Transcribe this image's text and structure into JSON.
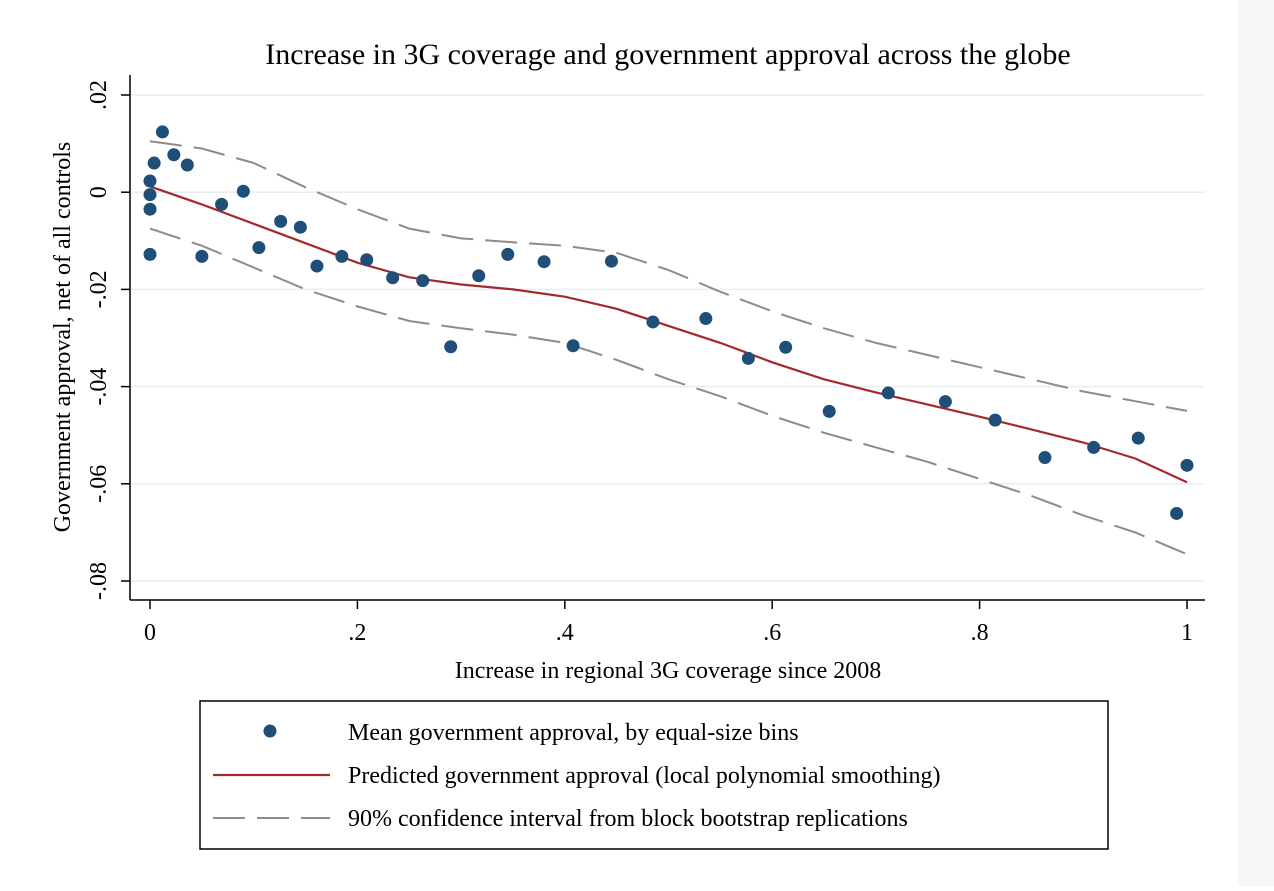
{
  "chart_data": {
    "type": "scatter",
    "title": "Increase in 3G coverage and government approval across the globe",
    "xlabel": "Increase in regional 3G coverage since 2008",
    "ylabel": "Government approval, net of all controls",
    "xlim": [
      0,
      1
    ],
    "ylim": [
      -0.08,
      0.02
    ],
    "x_ticks": [
      0,
      0.2,
      0.4,
      0.6,
      0.8,
      1
    ],
    "x_tick_labels": [
      "0",
      ".2",
      ".4",
      ".6",
      ".8",
      "1"
    ],
    "y_ticks": [
      -0.08,
      -0.06,
      -0.04,
      -0.02,
      0,
      0.02
    ],
    "y_tick_labels": [
      "-.08",
      "-.06",
      "-.04",
      "-.02",
      "0",
      ".02"
    ],
    "grid": true,
    "legend_placement": "bottom",
    "colors": {
      "points": "#1f4e79",
      "fit": "#a32a2a",
      "ci": "#8c8c8c",
      "grid": "#e6eef2"
    },
    "series": [
      {
        "name": "Mean government approval, by equal-size bins",
        "kind": "scatter",
        "x": [
          0.0,
          0.0,
          0.0,
          0.0,
          0.004,
          0.012,
          0.023,
          0.036,
          0.05,
          0.069,
          0.09,
          0.105,
          0.126,
          0.145,
          0.161,
          0.185,
          0.209,
          0.234,
          0.263,
          0.29,
          0.317,
          0.345,
          0.38,
          0.408,
          0.445,
          0.485,
          0.536,
          0.577,
          0.613,
          0.655,
          0.712,
          0.767,
          0.815,
          0.863,
          0.91,
          0.953,
          0.99,
          1.0
        ],
        "y": [
          0.0023,
          -0.0005,
          -0.0035,
          -0.0128,
          0.006,
          0.0124,
          0.0077,
          0.0056,
          -0.0132,
          -0.0025,
          0.0002,
          -0.0114,
          -0.006,
          -0.0072,
          -0.0152,
          -0.0132,
          -0.0139,
          -0.0176,
          -0.0182,
          -0.0318,
          -0.0172,
          -0.0128,
          -0.0143,
          -0.0316,
          -0.0142,
          -0.0267,
          -0.026,
          -0.0342,
          -0.0319,
          -0.0451,
          -0.0413,
          -0.0431,
          -0.0469,
          -0.0546,
          -0.0525,
          -0.0506,
          -0.0661,
          -0.0562
        ]
      },
      {
        "name": "Predicted government approval (local polynomial smoothing)",
        "kind": "line",
        "x": [
          0.0,
          0.05,
          0.1,
          0.15,
          0.2,
          0.25,
          0.3,
          0.35,
          0.4,
          0.45,
          0.5,
          0.55,
          0.6,
          0.65,
          0.7,
          0.75,
          0.8,
          0.85,
          0.9,
          0.95,
          1.0
        ],
        "y": [
          0.0012,
          -0.0025,
          -0.0065,
          -0.0105,
          -0.0145,
          -0.0175,
          -0.019,
          -0.02,
          -0.0215,
          -0.024,
          -0.0275,
          -0.031,
          -0.035,
          -0.0385,
          -0.0412,
          -0.0437,
          -0.0462,
          -0.0488,
          -0.0515,
          -0.0548,
          -0.0597
        ]
      },
      {
        "name": "90% confidence interval from block bootstrap replications",
        "kind": "band",
        "x": [
          0.0,
          0.05,
          0.1,
          0.15,
          0.2,
          0.25,
          0.3,
          0.35,
          0.4,
          0.45,
          0.5,
          0.55,
          0.6,
          0.65,
          0.7,
          0.75,
          0.8,
          0.85,
          0.9,
          0.95,
          1.0
        ],
        "upper": [
          0.0105,
          0.009,
          0.006,
          0.001,
          -0.0035,
          -0.0075,
          -0.0095,
          -0.0103,
          -0.011,
          -0.0125,
          -0.016,
          -0.0205,
          -0.0245,
          -0.028,
          -0.031,
          -0.0335,
          -0.036,
          -0.0385,
          -0.041,
          -0.043,
          -0.045
        ],
        "lower": [
          -0.0075,
          -0.011,
          -0.0155,
          -0.02,
          -0.0235,
          -0.0265,
          -0.028,
          -0.0293,
          -0.031,
          -0.0345,
          -0.0385,
          -0.042,
          -0.046,
          -0.0495,
          -0.0525,
          -0.0555,
          -0.059,
          -0.0625,
          -0.0665,
          -0.07,
          -0.0745
        ]
      }
    ]
  }
}
